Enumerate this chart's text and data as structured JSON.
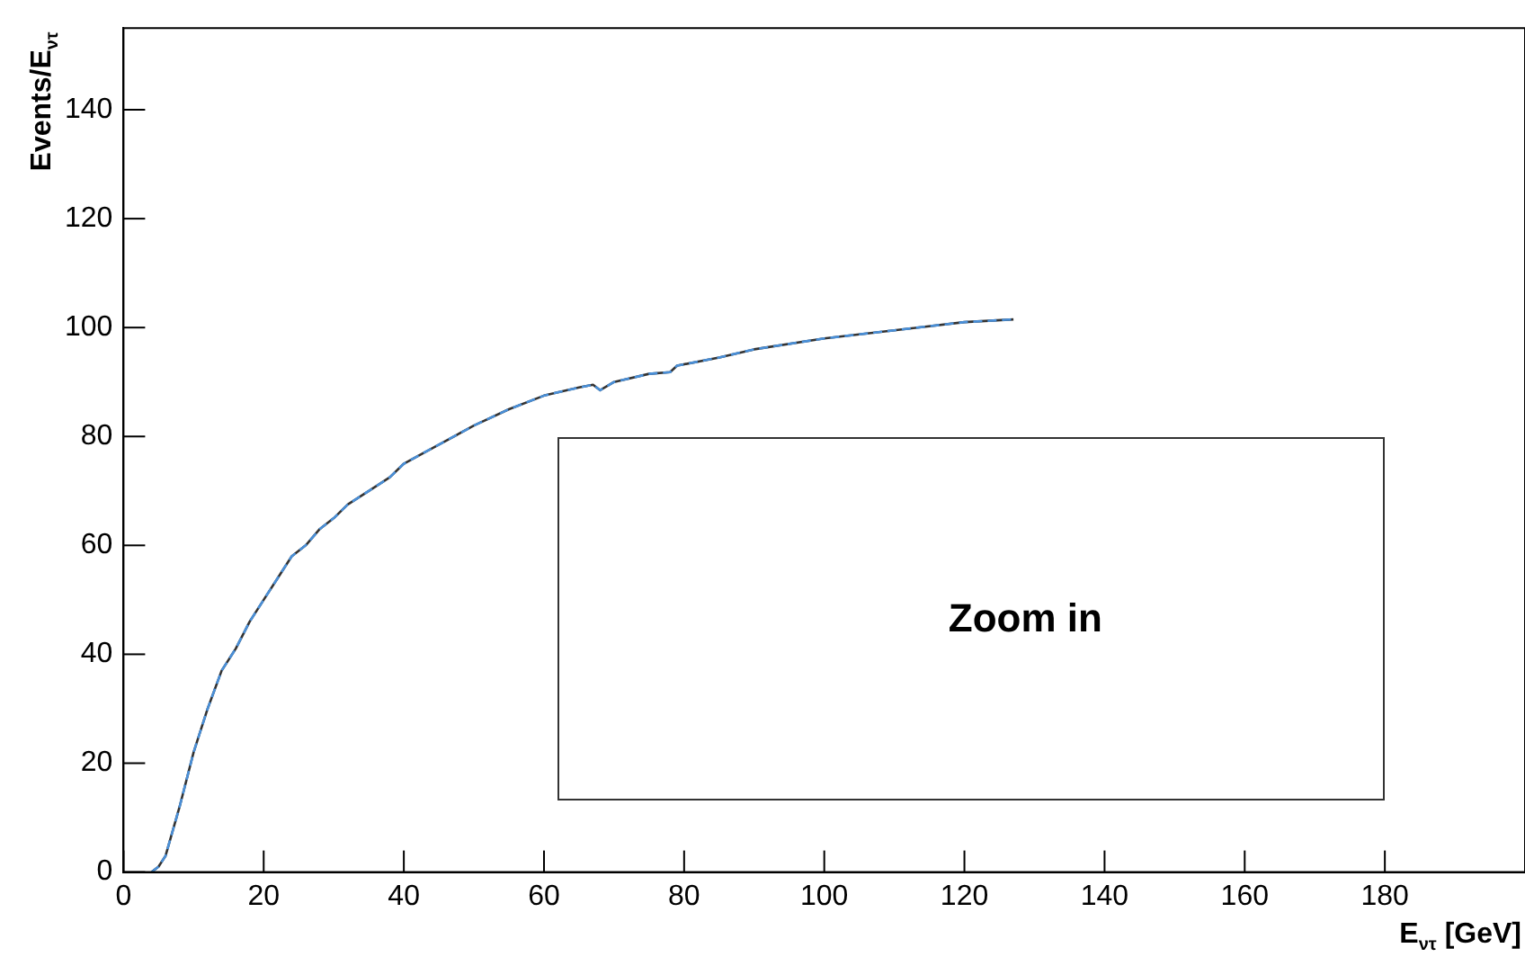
{
  "chart_data": {
    "type": "line",
    "xlabel": "E$_{ντ}$ [GeV]",
    "ylabel": "Events/E$_{ντ}$",
    "annotations": [
      "Zoom in"
    ],
    "xlim": [
      0,
      200
    ],
    "xticks": [
      0,
      20,
      40,
      60,
      80,
      100,
      120,
      140,
      160,
      180
    ],
    "ylim": [
      0,
      155
    ],
    "yticks": [
      0,
      20,
      40,
      60,
      80,
      100,
      120,
      140
    ],
    "grid": false,
    "legend": false,
    "marker": "none",
    "x": [
      4,
      5,
      6,
      8,
      10,
      12,
      14,
      16,
      18,
      20,
      22,
      24,
      26,
      28,
      30,
      32,
      35,
      38,
      40,
      45,
      50,
      55,
      60,
      65,
      67,
      68,
      70,
      75,
      78,
      79,
      85,
      90,
      100,
      110,
      120,
      127
    ],
    "series": [
      {
        "color": "#333333",
        "line_style": "solid",
        "values": [
          0,
          1,
          3,
          12,
          22,
          30,
          37,
          41,
          46,
          50,
          54,
          58,
          60,
          63,
          65,
          67.5,
          70,
          72.5,
          75,
          78.5,
          82,
          85,
          87.5,
          89,
          89.5,
          88.5,
          90,
          91.5,
          91.8,
          93,
          94.5,
          96,
          98,
          99.5,
          101,
          101.5
        ]
      },
      {
        "color": "#4a90d9",
        "line_style": "dashed",
        "values": [
          0,
          1,
          3,
          12,
          22,
          30,
          37,
          41,
          46,
          50,
          54,
          58,
          60,
          63,
          65,
          67.5,
          70,
          72.5,
          75,
          78.5,
          82,
          85,
          87.5,
          89,
          89.5,
          88.5,
          90,
          91.5,
          91.8,
          93,
          94.5,
          96,
          98,
          99.5,
          101,
          101.5
        ]
      }
    ]
  }
}
